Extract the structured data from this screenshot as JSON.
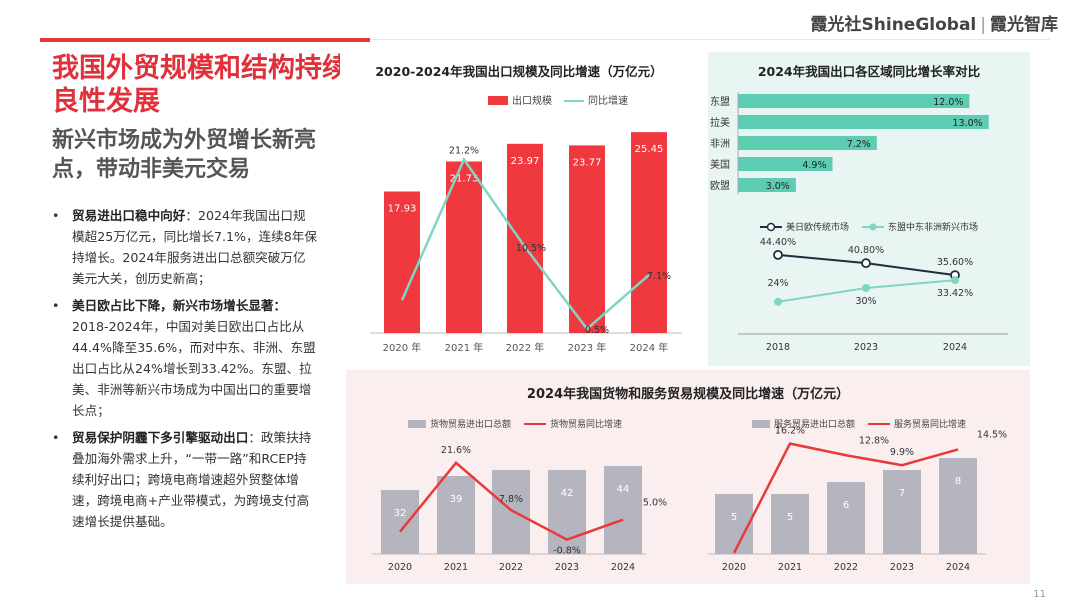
{
  "brand": {
    "left": "霞光社ShineGlobal",
    "sep": "|",
    "right": "霞光智库"
  },
  "title": {
    "main": "我国外贸规模和结构持续良性发展",
    "sub": "新兴市场成为外贸增长新亮点，带动非美元交易"
  },
  "bullets": [
    {
      "dot": "•",
      "bold": "贸易进出口稳中向好",
      "text": "：2024年我国出口规模超25万亿元，同比增长7.1%，连续8年保持增长。2024年服务进出口总额突破万亿美元大关，创历史新高；"
    },
    {
      "dot": "•",
      "bold": "美日欧占比下降，新兴市场增长显著：",
      "text": "2018-2024年，中国对美日欧出口占比从44.4%降至35.6%，而对中东、非洲、东盟出口占比从24%增长到33.42%。东盟、拉美、非洲等新兴市场成为中国出口的重要增长点；"
    },
    {
      "dot": "•",
      "bold": "贸易保护阴霾下多引擎驱动出口",
      "text": "：政策扶持叠加海外需求上升，“一带一路”和RCEP持续利好出口；跨境电商增速超外贸整体增速，跨境电商+产业带模式，为跨境支付高速增长提供基础。"
    }
  ],
  "page_number": "11",
  "colors": {
    "red": "#f0383f",
    "teal": "#7fd6c2",
    "tealbar": "#5ccdb2",
    "navy": "#1f2d3d",
    "gray": "#b5b5c0",
    "redline": "#e83a3a"
  },
  "chart_data": [
    {
      "type": "bar",
      "title": "2020-2024年我国出口规模及同比增速（万亿元）",
      "categories": [
        "2020 年",
        "2021 年",
        "2022 年",
        "2023 年",
        "2024 年"
      ],
      "series": [
        {
          "name": "出口规模",
          "kind": "bar",
          "values": [
            17.93,
            21.73,
            23.97,
            23.77,
            25.45
          ],
          "labels": [
            "17.93",
            "21.73",
            "23.97",
            "23.77",
            "25.45"
          ]
        },
        {
          "name": "同比增速",
          "kind": "line",
          "values": [
            4,
            21.2,
            10.5,
            0.5,
            7.1
          ],
          "labels": [
            "",
            "21.2%",
            "10.5%",
            "0.5%",
            "7.1%"
          ]
        }
      ],
      "ylim": [
        0,
        28
      ],
      "y2lim": [
        0,
        27
      ],
      "grid": false,
      "legend": "top"
    },
    {
      "type": "bar",
      "orientation": "horizontal",
      "title": "2024年我国出口各区域同比增长率对比",
      "categories": [
        "东盟",
        "拉美",
        "非洲",
        "美国",
        "欧盟"
      ],
      "values": [
        12.0,
        13.0,
        7.2,
        4.9,
        3.0
      ],
      "labels": [
        "12.0%",
        "13.0%",
        "7.2%",
        "4.9%",
        "3.0%"
      ],
      "xlim": [
        0,
        14
      ],
      "grid": false
    },
    {
      "type": "line",
      "categories": [
        "2018",
        "2023",
        "2024"
      ],
      "series": [
        {
          "name": "美日欧传统市场",
          "values": [
            44.4,
            40.8,
            35.6
          ],
          "labels": [
            "44.40%",
            "40.80%",
            "35.60%"
          ]
        },
        {
          "name": "东盟中东非洲新兴市场",
          "values": [
            24,
            30,
            33.42
          ],
          "labels": [
            "24%",
            "30%",
            "33.42%"
          ]
        }
      ],
      "ylim": [
        10,
        50
      ],
      "grid": false,
      "legend": "top"
    },
    {
      "type": "bar",
      "title": "2024年我国货物和服务贸易规模及同比增速（万亿元）",
      "categories": [
        "2020",
        "2021",
        "2022",
        "2023",
        "2024"
      ],
      "series": [
        {
          "name": "货物贸易进出口总额",
          "kind": "bar",
          "values": [
            32,
            39,
            42,
            42,
            44
          ],
          "labels": [
            "32",
            "39",
            "",
            "42",
            "44"
          ]
        },
        {
          "name": "货物贸易同比增速",
          "kind": "line",
          "values": [
            1.5,
            21.6,
            7.8,
            -0.8,
            5.0
          ],
          "labels": [
            "",
            "21.6%",
            "7.8%",
            "-0.8%",
            "5.0%"
          ]
        }
      ],
      "ylim": [
        0,
        60
      ],
      "y2lim": [
        -5,
        30
      ],
      "grid": false,
      "legend": "top"
    },
    {
      "type": "bar",
      "categories": [
        "2020",
        "2021",
        "2022",
        "2023",
        "2024"
      ],
      "series": [
        {
          "name": "服务贸易进出口总额",
          "kind": "bar",
          "values": [
            5,
            5,
            6,
            7,
            8
          ],
          "labels": [
            "5",
            "5",
            "6",
            "7",
            "8"
          ]
        },
        {
          "name": "服务贸易同比增速",
          "kind": "line",
          "values": [
            -15.7,
            16.2,
            12.8,
            9.9,
            14.5
          ],
          "labels": [
            "",
            "16.2%",
            "12.8%",
            "9.9%",
            "14.5%"
          ]
        }
      ],
      "ylim": [
        0,
        10
      ],
      "y2lim": [
        -16,
        19
      ],
      "grid": false,
      "legend": "top"
    }
  ]
}
